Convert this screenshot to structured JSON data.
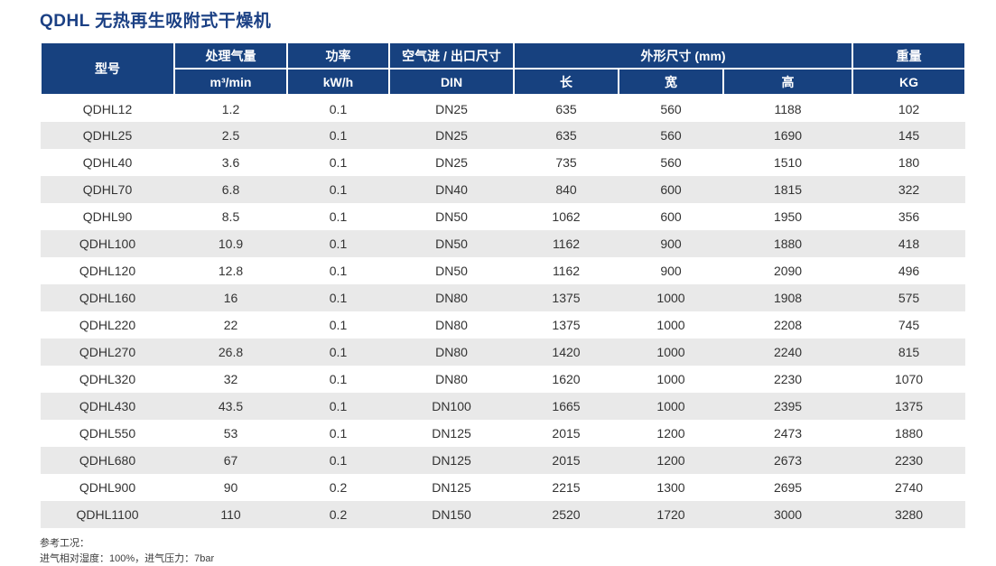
{
  "title": "QDHL 无热再生吸附式干燥机",
  "colors": {
    "header_bg": "#17417f",
    "title_color": "#1b4084",
    "stripe": "#e9e9e9",
    "text": "#333333",
    "footer_text": "#3c3c3c"
  },
  "table": {
    "header": {
      "model": "型号",
      "flow": "处理气量",
      "flow_unit": "m³/min",
      "power": "功率",
      "power_unit": "kW/h",
      "port": "空气进 / 出口尺寸",
      "port_unit": "DIN",
      "dims": "外形尺寸 (mm)",
      "dim_length": "长",
      "dim_width": "宽",
      "dim_height": "高",
      "weight": "重量",
      "weight_unit": "KG"
    },
    "columns_order": [
      "model",
      "flow",
      "power",
      "din",
      "length",
      "width",
      "height",
      "weight"
    ],
    "rows": [
      {
        "model": "QDHL12",
        "flow": "1.2",
        "power": "0.1",
        "din": "DN25",
        "length": "635",
        "width": "560",
        "height": "1188",
        "weight": "102"
      },
      {
        "model": "QDHL25",
        "flow": "2.5",
        "power": "0.1",
        "din": "DN25",
        "length": "635",
        "width": "560",
        "height": "1690",
        "weight": "145"
      },
      {
        "model": "QDHL40",
        "flow": "3.6",
        "power": "0.1",
        "din": "DN25",
        "length": "735",
        "width": "560",
        "height": "1510",
        "weight": "180"
      },
      {
        "model": "QDHL70",
        "flow": "6.8",
        "power": "0.1",
        "din": "DN40",
        "length": "840",
        "width": "600",
        "height": "1815",
        "weight": "322"
      },
      {
        "model": "QDHL90",
        "flow": "8.5",
        "power": "0.1",
        "din": "DN50",
        "length": "1062",
        "width": "600",
        "height": "1950",
        "weight": "356"
      },
      {
        "model": "QDHL100",
        "flow": "10.9",
        "power": "0.1",
        "din": "DN50",
        "length": "1162",
        "width": "900",
        "height": "1880",
        "weight": "418"
      },
      {
        "model": "QDHL120",
        "flow": "12.8",
        "power": "0.1",
        "din": "DN50",
        "length": "1162",
        "width": "900",
        "height": "2090",
        "weight": "496"
      },
      {
        "model": "QDHL160",
        "flow": "16",
        "power": "0.1",
        "din": "DN80",
        "length": "1375",
        "width": "1000",
        "height": "1908",
        "weight": "575"
      },
      {
        "model": "QDHL220",
        "flow": "22",
        "power": "0.1",
        "din": "DN80",
        "length": "1375",
        "width": "1000",
        "height": "2208",
        "weight": "745"
      },
      {
        "model": "QDHL270",
        "flow": "26.8",
        "power": "0.1",
        "din": "DN80",
        "length": "1420",
        "width": "1000",
        "height": "2240",
        "weight": "815"
      },
      {
        "model": "QDHL320",
        "flow": "32",
        "power": "0.1",
        "din": "DN80",
        "length": "1620",
        "width": "1000",
        "height": "2230",
        "weight": "1070"
      },
      {
        "model": "QDHL430",
        "flow": "43.5",
        "power": "0.1",
        "din": "DN100",
        "length": "1665",
        "width": "1000",
        "height": "2395",
        "weight": "1375"
      },
      {
        "model": "QDHL550",
        "flow": "53",
        "power": "0.1",
        "din": "DN125",
        "length": "2015",
        "width": "1200",
        "height": "2473",
        "weight": "1880"
      },
      {
        "model": "QDHL680",
        "flow": "67",
        "power": "0.1",
        "din": "DN125",
        "length": "2015",
        "width": "1200",
        "height": "2673",
        "weight": "2230"
      },
      {
        "model": "QDHL900",
        "flow": "90",
        "power": "0.2",
        "din": "DN125",
        "length": "2215",
        "width": "1300",
        "height": "2695",
        "weight": "2740"
      },
      {
        "model": "QDHL1100",
        "flow": "110",
        "power": "0.2",
        "din": "DN150",
        "length": "2520",
        "width": "1720",
        "height": "3000",
        "weight": "3280"
      }
    ]
  },
  "footer": {
    "line1": "参考工况：",
    "line2": "进气相对湿度：100%，进气压力：7bar"
  }
}
